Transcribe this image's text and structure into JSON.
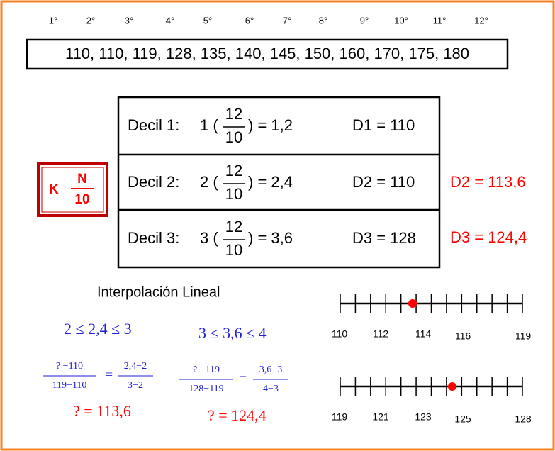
{
  "ordinals": [
    "1°",
    "2°",
    "3°",
    "4°",
    "5°",
    "6°",
    "7°",
    "8°",
    "9°",
    "10°",
    "11°",
    "12°"
  ],
  "data_row": "110, 110, 119, 128, 135, 140, 145, 150, 160, 170, 175, 180",
  "formula": {
    "k": "K",
    "numerator": "N",
    "denominator": "10"
  },
  "deciles": [
    {
      "label": "Decil 1:",
      "k": "1 (",
      "numerator": "12",
      "denominator": "10",
      "result": ") = 1,2",
      "value": "D1 = 110"
    },
    {
      "label": "Decil 2:",
      "k": "2 (",
      "numerator": "12",
      "denominator": "10",
      "result": ") = 2,4",
      "value": "D2 = 110"
    },
    {
      "label": "Decil 3:",
      "k": "3 (",
      "numerator": "12",
      "denominator": "10",
      "result": ") = 3,6",
      "value": "D3 = 128"
    }
  ],
  "interpolated": [
    "D2 = 113,6",
    "D3 = 124,4"
  ],
  "interpolation": {
    "title": "Interpolación Lineal",
    "cases": [
      {
        "inequality": "2 ≤ 2,4 ≤ 3",
        "left_numerator": "? −110",
        "left_denominator": "119−110",
        "equals": "=",
        "right_numerator": "2,4−2",
        "right_denominator": "3−2",
        "result": "? = 113,6"
      },
      {
        "inequality": "3 ≤ 3,6 ≤ 4",
        "left_numerator": "? −119",
        "left_denominator": "128−119",
        "equals": "=",
        "right_numerator": "3,6−3",
        "right_denominator": "4−3",
        "result": "? = 124,4"
      }
    ]
  },
  "number_lines": [
    {
      "labels": [
        "110",
        "112",
        "114",
        "116",
        "119"
      ]
    },
    {
      "labels": [
        "119",
        "121",
        "123",
        "125",
        "128"
      ]
    }
  ]
}
